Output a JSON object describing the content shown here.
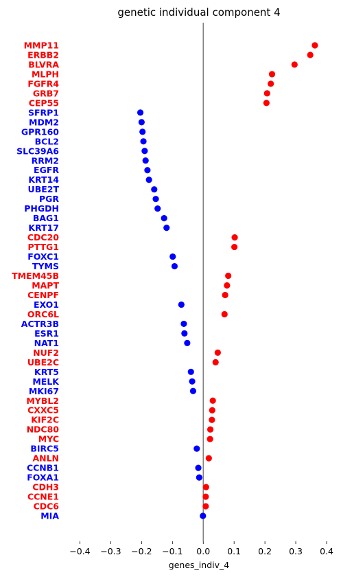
{
  "chart_data": {
    "type": "scatter",
    "title": "genetic individual component 4",
    "xlabel": "genes_indiv_4",
    "ylabel": "",
    "xlim": [
      -0.45,
      0.42
    ],
    "xticks": [
      -0.4,
      -0.3,
      -0.2,
      -0.1,
      0.0,
      0.1,
      0.2,
      0.3,
      0.4
    ],
    "xtick_labels": [
      "−0.4",
      "−0.3",
      "−0.2",
      "−0.1",
      "0.0",
      "0.1",
      "0.2",
      "0.3",
      "0.4"
    ],
    "reference_line_x": 0.0,
    "grid": false,
    "colors": {
      "positive": "#ff0000",
      "negative": "#0000ff",
      "reference_line": "#808080"
    },
    "points": [
      {
        "gene": "MMP11",
        "value": 0.362
      },
      {
        "gene": "ERBB2",
        "value": 0.347
      },
      {
        "gene": "BLVRA",
        "value": 0.296
      },
      {
        "gene": "MLPH",
        "value": 0.223
      },
      {
        "gene": "FGFR4",
        "value": 0.219
      },
      {
        "gene": "GRB7",
        "value": 0.207
      },
      {
        "gene": "CEP55",
        "value": 0.205
      },
      {
        "gene": "SFRP1",
        "value": -0.204
      },
      {
        "gene": "MDM2",
        "value": -0.2
      },
      {
        "gene": "GPR160",
        "value": -0.197
      },
      {
        "gene": "BCL2",
        "value": -0.194
      },
      {
        "gene": "SLC39A6",
        "value": -0.19
      },
      {
        "gene": "RRM2",
        "value": -0.187
      },
      {
        "gene": "EGFR",
        "value": -0.181
      },
      {
        "gene": "KRT14",
        "value": -0.176
      },
      {
        "gene": "UBE2T",
        "value": -0.159
      },
      {
        "gene": "PGR",
        "value": -0.154
      },
      {
        "gene": "PHGDH",
        "value": -0.148
      },
      {
        "gene": "BAG1",
        "value": -0.127
      },
      {
        "gene": "KRT17",
        "value": -0.119
      },
      {
        "gene": "CDC20",
        "value": 0.102
      },
      {
        "gene": "PTTG1",
        "value": 0.101
      },
      {
        "gene": "FOXC1",
        "value": -0.099
      },
      {
        "gene": "TYMS",
        "value": -0.093
      },
      {
        "gene": "TMEM45B",
        "value": 0.081
      },
      {
        "gene": "MAPT",
        "value": 0.077
      },
      {
        "gene": "CENPF",
        "value": 0.071
      },
      {
        "gene": "EXO1",
        "value": -0.071
      },
      {
        "gene": "ORC6L",
        "value": 0.069
      },
      {
        "gene": "ACTR3B",
        "value": -0.063
      },
      {
        "gene": "ESR1",
        "value": -0.061
      },
      {
        "gene": "NAT1",
        "value": -0.052
      },
      {
        "gene": "NUF2",
        "value": 0.047
      },
      {
        "gene": "UBE2C",
        "value": 0.04
      },
      {
        "gene": "KRT5",
        "value": -0.04
      },
      {
        "gene": "MELK",
        "value": -0.036
      },
      {
        "gene": "MKI67",
        "value": -0.033
      },
      {
        "gene": "MYBL2",
        "value": 0.031
      },
      {
        "gene": "CXXC5",
        "value": 0.029
      },
      {
        "gene": "KIF2C",
        "value": 0.028
      },
      {
        "gene": "NDC80",
        "value": 0.023
      },
      {
        "gene": "MYC",
        "value": 0.022
      },
      {
        "gene": "BIRC5",
        "value": -0.021
      },
      {
        "gene": "ANLN",
        "value": 0.018
      },
      {
        "gene": "CCNB1",
        "value": -0.016
      },
      {
        "gene": "FOXA1",
        "value": -0.013
      },
      {
        "gene": "CDH3",
        "value": 0.009
      },
      {
        "gene": "CCNE1",
        "value": 0.008
      },
      {
        "gene": "CDC6",
        "value": 0.008
      },
      {
        "gene": "MIA",
        "value": -0.001
      }
    ]
  }
}
